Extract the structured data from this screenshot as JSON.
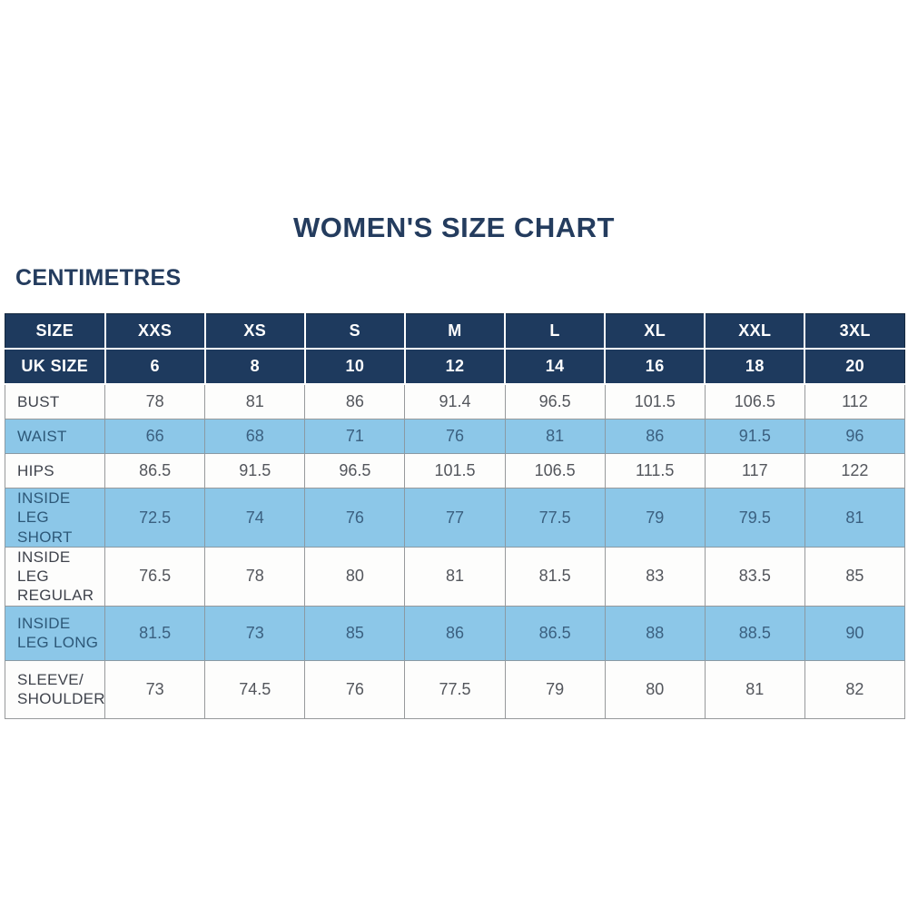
{
  "title": "WOMEN'S SIZE CHART",
  "units_label": "CENTIMETRES",
  "colors": {
    "header_navy": "#1e3a5e",
    "row_light_blue": "#8cc7e8",
    "row_white": "#fdfdfc",
    "title_text": "#243c5e",
    "header_text": "#ffffff",
    "value_text_white_row": "#53565c",
    "value_text_blue_row": "#3b6080",
    "cell_border_gray": "#97999b"
  },
  "chart_data": {
    "type": "table",
    "title": "WOMEN'S SIZE CHART",
    "units": "CENTIMETRES",
    "columns": [
      "SIZE",
      "XXS",
      "XS",
      "S",
      "M",
      "L",
      "XL",
      "XXL",
      "3XL"
    ],
    "uk_size_row": {
      "label": "UK SIZE",
      "values": [
        "6",
        "8",
        "10",
        "12",
        "14",
        "16",
        "18",
        "20"
      ]
    },
    "rows": [
      {
        "label": "BUST",
        "values": [
          "78",
          "81",
          "86",
          "91.4",
          "96.5",
          "101.5",
          "106.5",
          "112"
        ]
      },
      {
        "label": "WAIST",
        "values": [
          "66",
          "68",
          "71",
          "76",
          "81",
          "86",
          "91.5",
          "96"
        ]
      },
      {
        "label": "HIPS",
        "values": [
          "86.5",
          "91.5",
          "96.5",
          "101.5",
          "106.5",
          "111.5",
          "117",
          "122"
        ]
      },
      {
        "label": "INSIDE LEG SHORT",
        "values": [
          "72.5",
          "74",
          "76",
          "77",
          "77.5",
          "79",
          "79.5",
          "81"
        ]
      },
      {
        "label": "INSIDE LEG REGULAR",
        "values": [
          "76.5",
          "78",
          "80",
          "81",
          "81.5",
          "83",
          "83.5",
          "85"
        ]
      },
      {
        "label": "INSIDE LEG LONG",
        "values": [
          "81.5",
          "73",
          "85",
          "86",
          "86.5",
          "88",
          "88.5",
          "90"
        ]
      },
      {
        "label": "SLEEVE/ SHOULDER",
        "values": [
          "73",
          "74.5",
          "76",
          "77.5",
          "79",
          "80",
          "81",
          "82"
        ]
      }
    ]
  }
}
